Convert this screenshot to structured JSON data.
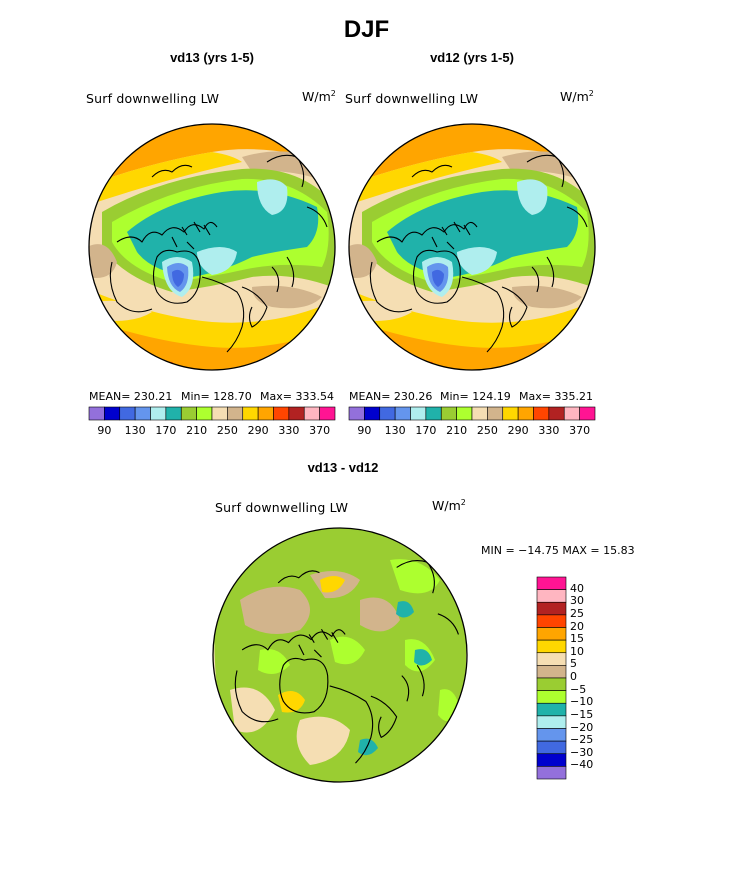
{
  "title": "DJF",
  "colors": {
    "abs_palette": [
      "#9370DB",
      "#0000CD",
      "#4169E1",
      "#6495ED",
      "#AFEEEE",
      "#20B2AA",
      "#9ACD32",
      "#ADFF2F",
      "#F5DEB3",
      "#D2B48C",
      "#FFD700",
      "#FFA500",
      "#FF4500",
      "#B22222",
      "#FFB6C1",
      "#FF1493"
    ],
    "diff_palette": [
      "#9370DB",
      "#0000CD",
      "#4169E1",
      "#6495ED",
      "#AFEEEE",
      "#20B2AA",
      "#ADFF2F",
      "#9ACD32",
      "#D2B48C",
      "#F5DEB3",
      "#FFD700",
      "#FFA500",
      "#FF4500",
      "#B22222",
      "#FFB6C1",
      "#FF1493"
    ]
  },
  "chart_data": [
    {
      "type": "heatmap",
      "panel": "left",
      "subtitle": "vd13 (yrs 1-5)",
      "variable": "Surf downwelling LW",
      "units": "W/m",
      "units_exp": "2",
      "mean_label": "MEAN= 230.21",
      "min_label": "Min= 128.70",
      "max_label": "Max= 333.54",
      "stats": {
        "mean": 230.21,
        "min": 128.7,
        "max": 333.54
      },
      "colorbar_ticks": [
        "90",
        "130",
        "170",
        "210",
        "250",
        "290",
        "330",
        "370"
      ],
      "tick_values": [
        90,
        130,
        170,
        210,
        250,
        290,
        330,
        370
      ]
    },
    {
      "type": "heatmap",
      "panel": "right",
      "subtitle": "vd12 (yrs 1-5)",
      "variable": "Surf downwelling LW",
      "units": "W/m",
      "units_exp": "2",
      "mean_label": "MEAN= 230.26",
      "min_label": "Min= 124.19",
      "max_label": "Max= 335.21",
      "stats": {
        "mean": 230.26,
        "min": 124.19,
        "max": 335.21
      },
      "colorbar_ticks": [
        "90",
        "130",
        "170",
        "210",
        "250",
        "290",
        "330",
        "370"
      ],
      "tick_values": [
        90,
        130,
        170,
        210,
        250,
        290,
        330,
        370
      ]
    },
    {
      "type": "heatmap",
      "panel": "difference",
      "subtitle": "vd13 - vd12",
      "variable": "Surf downwelling LW",
      "units": "W/m",
      "units_exp": "2",
      "minmax_label": "MIN = −14.75 MAX =  15.83",
      "stats": {
        "min": -14.75,
        "max": 15.83
      },
      "colorbar_ticks": [
        "40",
        "30",
        "25",
        "20",
        "15",
        "10",
        "5",
        "0",
        "−5",
        "−10",
        "−15",
        "−20",
        "−25",
        "−30",
        "−40"
      ],
      "tick_values": [
        40,
        30,
        25,
        20,
        15,
        10,
        5,
        0,
        -5,
        -10,
        -15,
        -20,
        -25,
        -30,
        -40
      ]
    }
  ]
}
